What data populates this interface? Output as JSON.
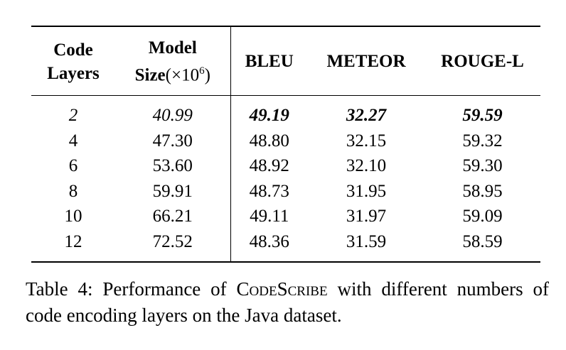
{
  "table": {
    "headers": {
      "code_layers": [
        "Code",
        "Layers"
      ],
      "model_size": [
        "Model",
        "Size",
        "(×10",
        "6",
        ")"
      ],
      "bleu": "BLEU",
      "meteor": "METEOR",
      "rouge": "ROUGE-L"
    },
    "rows": [
      [
        "2",
        "40.99",
        "49.19",
        "32.27",
        "59.59"
      ],
      [
        "4",
        "47.30",
        "48.80",
        "32.15",
        "59.32"
      ],
      [
        "6",
        "53.60",
        "48.92",
        "32.10",
        "59.30"
      ],
      [
        "8",
        "59.91",
        "48.73",
        "31.95",
        "58.95"
      ],
      [
        "10",
        "66.21",
        "49.11",
        "31.97",
        "59.09"
      ],
      [
        "12",
        "72.52",
        "48.36",
        "31.59",
        "58.59"
      ]
    ]
  },
  "caption": {
    "label": "Table 4:",
    "text_before": "Performance of",
    "model_name": "CodeScribe",
    "text_after": "with different numbers of code encoding layers on the Java dataset."
  }
}
